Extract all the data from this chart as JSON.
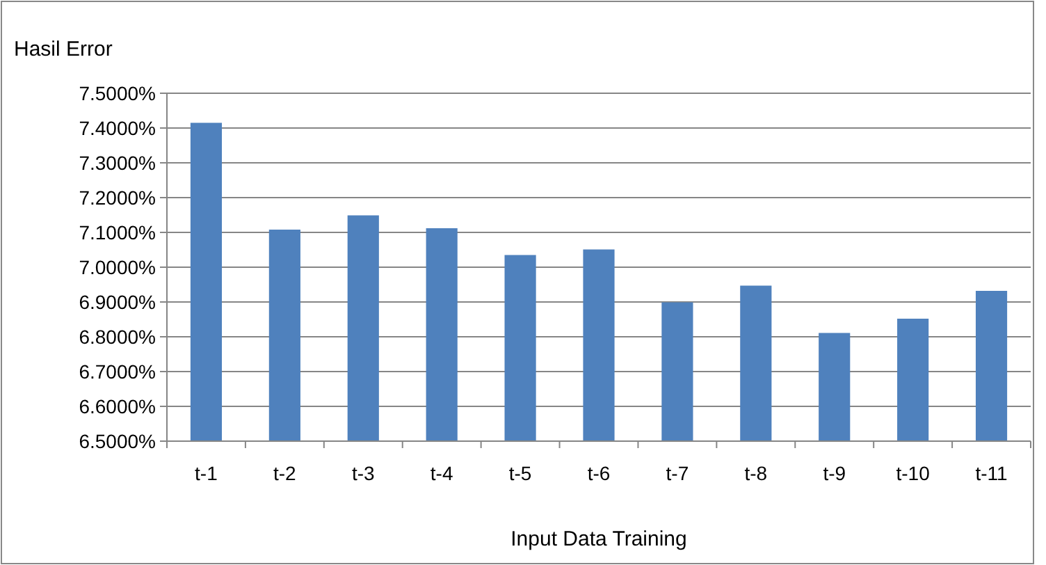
{
  "chart_data": {
    "type": "bar",
    "title": "Hasil Error",
    "xlabel": "Input Data Training",
    "categories": [
      "t-1",
      "t-2",
      "t-3",
      "t-4",
      "t-5",
      "t-6",
      "t-7",
      "t-8",
      "t-9",
      "t-10",
      "t-11"
    ],
    "values": [
      7.415,
      7.108,
      7.149,
      7.112,
      7.035,
      7.051,
      6.899,
      6.947,
      6.811,
      6.852,
      6.932
    ],
    "color": "#4f81bd",
    "ylim": [
      6.5,
      7.5
    ],
    "yticks": [
      {
        "value": 6.5,
        "label": "6.5000%"
      },
      {
        "value": 6.6,
        "label": "6.6000%"
      },
      {
        "value": 6.7,
        "label": "6.7000%"
      },
      {
        "value": 6.8,
        "label": "6.8000%"
      },
      {
        "value": 6.9,
        "label": "6.9000%"
      },
      {
        "value": 7.0,
        "label": "7.0000%"
      },
      {
        "value": 7.1,
        "label": "7.1000%"
      },
      {
        "value": 7.2,
        "label": "7.2000%"
      },
      {
        "value": 7.3,
        "label": "7.3000%"
      },
      {
        "value": 7.4,
        "label": "7.4000%"
      },
      {
        "value": 7.5,
        "label": "7.5000%"
      }
    ],
    "grid": "y"
  }
}
